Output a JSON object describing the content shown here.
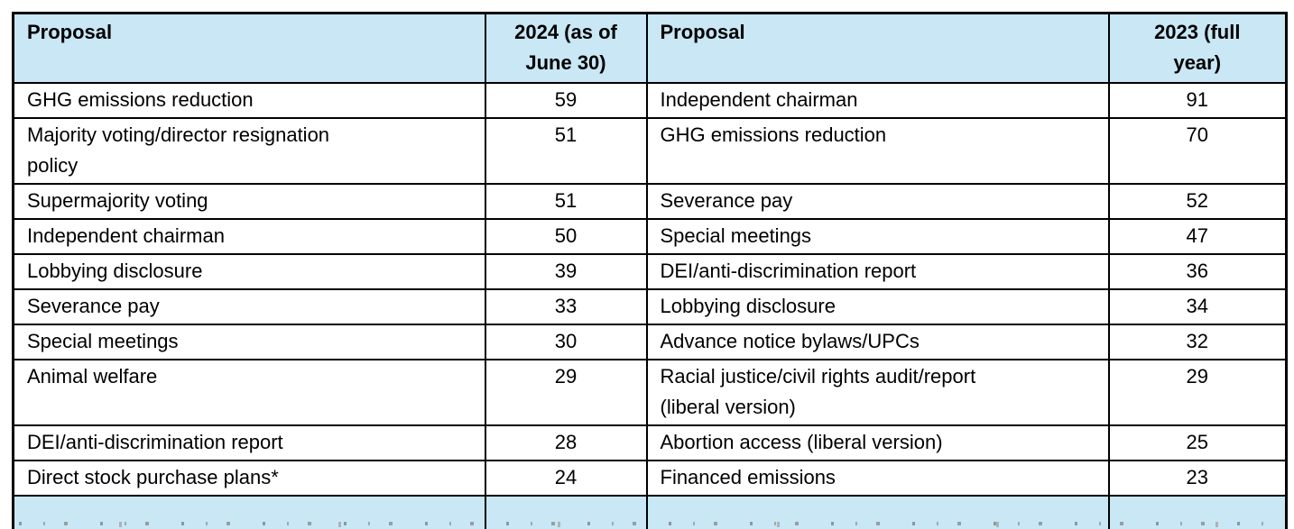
{
  "table": {
    "headers": {
      "proposal_left": "Proposal",
      "value_2024": "2024 (as of\nJune 30)",
      "proposal_right": "Proposal",
      "value_2023": "2023 (full\nyear)"
    },
    "rows": [
      {
        "p1": "GHG emissions reduction",
        "v1": "59",
        "p2": "Independent chairman",
        "v2": "91"
      },
      {
        "p1": "Majority voting/director resignation\npolicy",
        "v1": "51",
        "p2": "GHG emissions reduction",
        "v2": "70"
      },
      {
        "p1": "Supermajority voting",
        "v1": "51",
        "p2": "Severance pay",
        "v2": "52"
      },
      {
        "p1": "Independent chairman",
        "v1": "50",
        "p2": "Special meetings",
        "v2": "47"
      },
      {
        "p1": "Lobbying disclosure",
        "v1": "39",
        "p2": "DEI/anti-discrimination report",
        "v2": "36"
      },
      {
        "p1": "Severance pay",
        "v1": "33",
        "p2": "Lobbying disclosure",
        "v2": "34"
      },
      {
        "p1": "Special meetings",
        "v1": "30",
        "p2": "Advance notice bylaws/UPCs",
        "v2": "32"
      },
      {
        "p1": "Animal welfare",
        "v1": "29",
        "p2": "Racial justice/civil rights audit/report\n(liberal version)",
        "v2": "29"
      },
      {
        "p1": "DEI/anti-discrimination report",
        "v1": "28",
        "p2": "Abortion access (liberal version)",
        "v2": "25"
      },
      {
        "p1": "Direct stock purchase plans*",
        "v1": "24",
        "p2": "Financed emissions",
        "v2": "23"
      }
    ]
  },
  "colors": {
    "header_bg": "#c9e7f5",
    "border": "#000000",
    "text": "#000000"
  }
}
